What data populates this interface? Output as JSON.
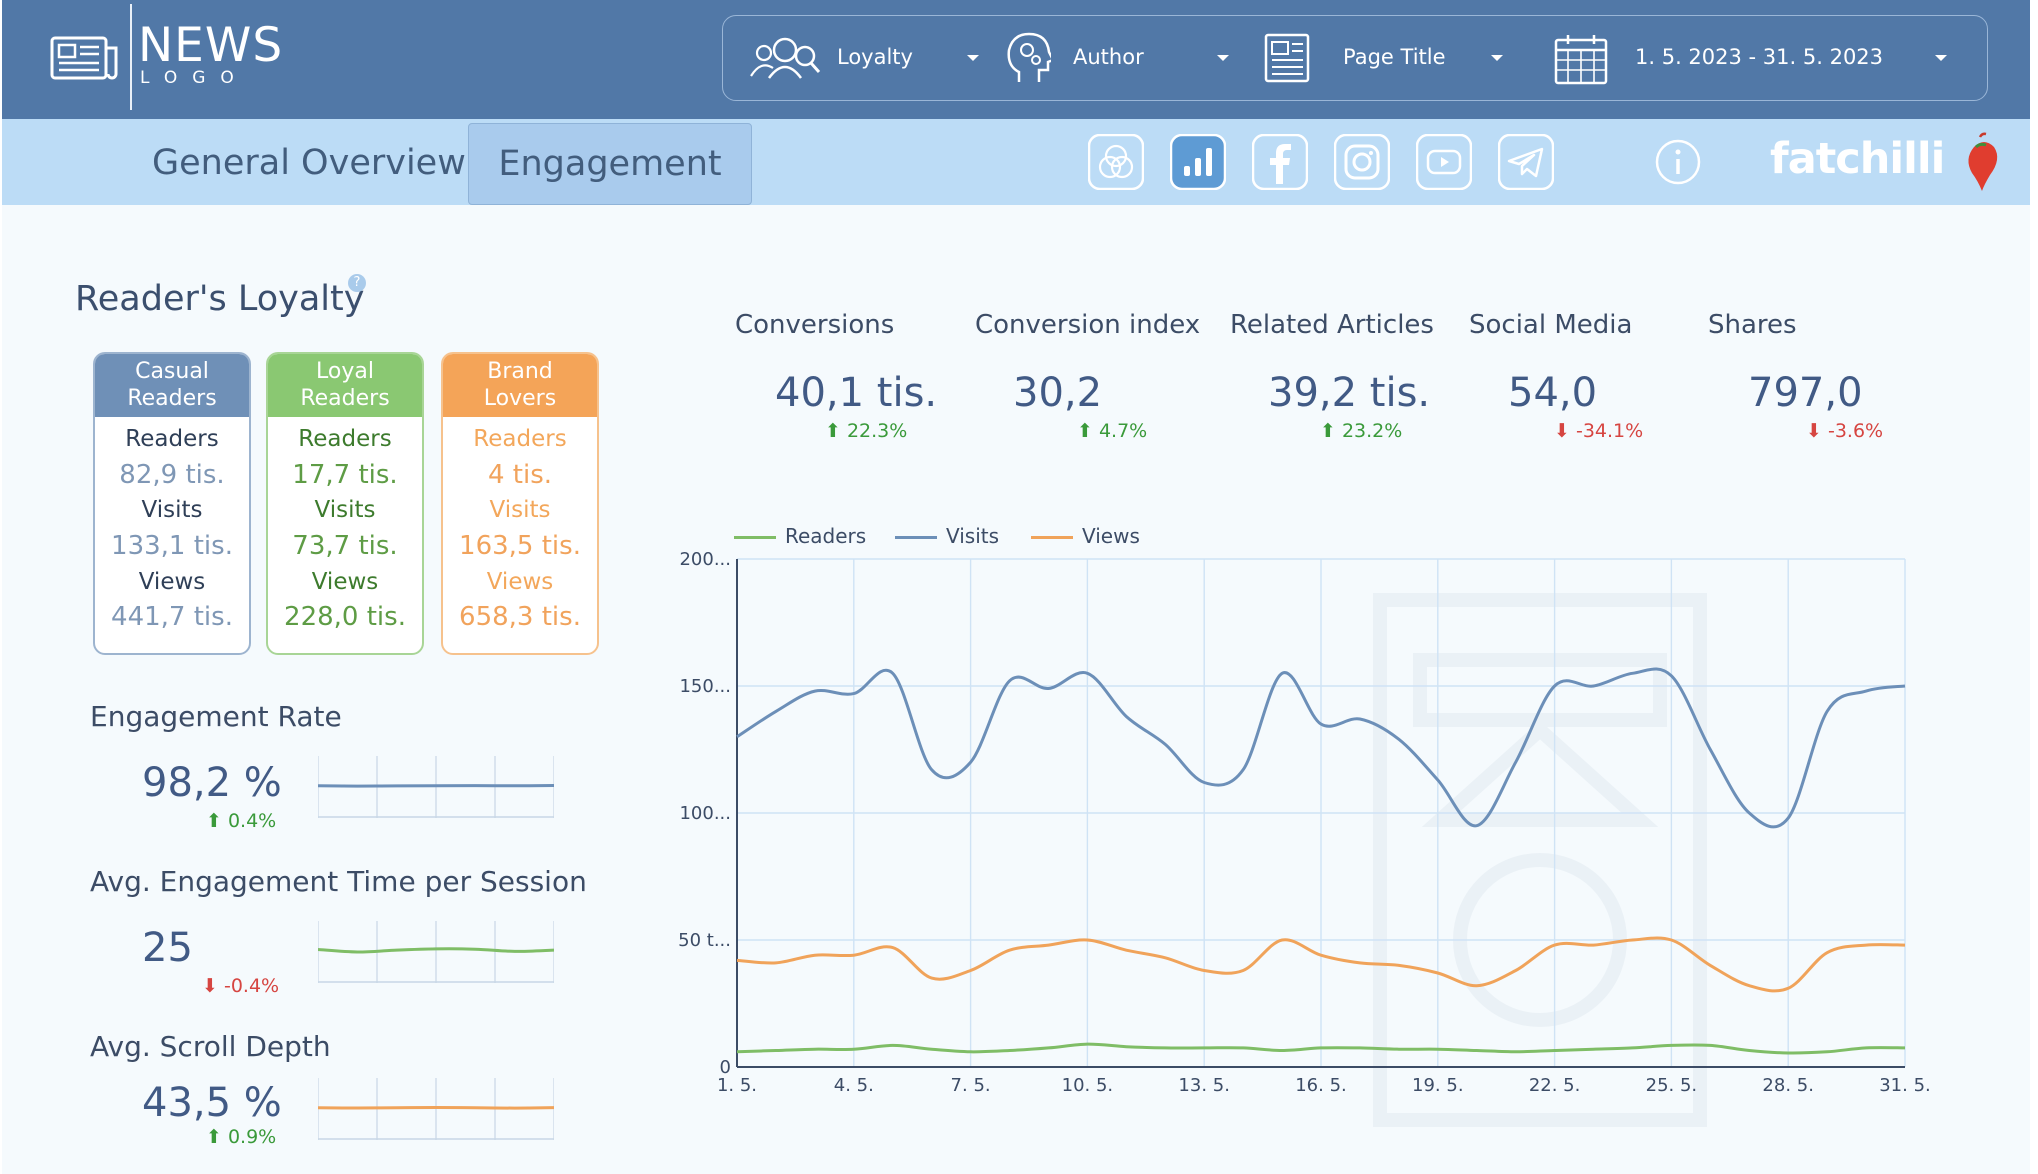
{
  "header": {
    "logo": {
      "title": "NEWS",
      "subtitle": "LOGO"
    },
    "filters": [
      {
        "label": "Loyalty",
        "icon": "users-search-icon"
      },
      {
        "label": "Author",
        "icon": "head-gears-icon"
      },
      {
        "label": "Page Title",
        "icon": "newspaper-icon"
      },
      {
        "label": "1. 5. 2023 - 31. 5. 2023",
        "icon": "calendar-icon"
      }
    ]
  },
  "nav": {
    "tabs": [
      {
        "label": "General Overview",
        "active": false
      },
      {
        "label": "Engagement",
        "active": true
      }
    ],
    "icons": [
      "venn-icon",
      "bar-chart-icon",
      "facebook-icon",
      "instagram-icon",
      "youtube-icon",
      "telegram-icon"
    ],
    "info_icon": "info-icon",
    "brand": "fatchilli"
  },
  "loyalty": {
    "title": "Reader's Loyalty",
    "cards": [
      {
        "head": [
          "Casual",
          "Readers"
        ],
        "readers_label": "Readers",
        "readers": "82,9 tis.",
        "visits_label": "Visits",
        "visits": "133,1 tis.",
        "views_label": "Views",
        "views": "441,7 tis."
      },
      {
        "head": [
          "Loyal",
          "Readers"
        ],
        "readers_label": "Readers",
        "readers": "17,7 tis.",
        "visits_label": "Visits",
        "visits": "73,7 tis.",
        "views_label": "Views",
        "views": "228,0 tis."
      },
      {
        "head": [
          "Brand",
          "Lovers"
        ],
        "readers_label": "Readers",
        "readers": "4 tis.",
        "visits_label": "Visits",
        "visits": "163,5 tis.",
        "views_label": "Views",
        "views": "658,3 tis."
      }
    ]
  },
  "metrics": [
    {
      "title": "Engagement Rate",
      "value": "98,2 %",
      "delta": "0.4%",
      "direction": "up",
      "color": "#6c8fb8",
      "spark": [
        52,
        51.5,
        51.8,
        52,
        52.2,
        52,
        52.4
      ]
    },
    {
      "title": "Avg. Engagement Time per Session",
      "value": "25",
      "delta": "-0.4%",
      "direction": "down",
      "color": "#7fbd66",
      "spark": [
        54,
        50,
        53,
        55,
        54.5,
        51,
        53
      ]
    },
    {
      "title": "Avg. Scroll Depth",
      "value": "43,5 %",
      "delta": "0.9%",
      "direction": "up",
      "color": "#f0a35a",
      "spark": [
        52,
        51.6,
        52,
        52.4,
        52,
        51.5,
        52.2
      ]
    }
  ],
  "kpis": [
    {
      "label": "Conversions",
      "value": "40,1 tis.",
      "delta": "22.3%",
      "direction": "up"
    },
    {
      "label": "Conversion index",
      "value": "30,2",
      "delta": "4.7%",
      "direction": "up"
    },
    {
      "label": "Related Articles",
      "value": "39,2 tis.",
      "delta": "23.2%",
      "direction": "up"
    },
    {
      "label": "Social Media",
      "value": "54,0",
      "delta": "-34.1%",
      "direction": "down"
    },
    {
      "label": "Shares",
      "value": "797,0",
      "delta": "-3.6%",
      "direction": "down"
    }
  ],
  "colors": {
    "readers": "#7fbd66",
    "visits": "#6c8fb8",
    "views": "#f0a35a",
    "up": "#3a9a3a",
    "down": "#d64541"
  },
  "chart_data": {
    "type": "line",
    "x": [
      "1. 5.",
      "2. 5.",
      "3. 5.",
      "4. 5.",
      "5. 5.",
      "6. 5.",
      "7. 5.",
      "8. 5.",
      "9. 5.",
      "10. 5.",
      "11. 5.",
      "12. 5.",
      "13. 5.",
      "14. 5.",
      "15. 5.",
      "16. 5.",
      "17. 5.",
      "18. 5.",
      "19. 5.",
      "20. 5.",
      "21. 5.",
      "22. 5.",
      "23. 5.",
      "24. 5.",
      "25. 5.",
      "26. 5.",
      "27. 5.",
      "28. 5.",
      "29. 5.",
      "30. 5.",
      "31. 5."
    ],
    "xticks": [
      "1. 5.",
      "4. 5.",
      "7. 5.",
      "10. 5.",
      "13. 5.",
      "16. 5.",
      "19. 5.",
      "22. 5.",
      "25. 5.",
      "28. 5.",
      "31. 5."
    ],
    "yticks": [
      "0",
      "50 t...",
      "100...",
      "150...",
      "200..."
    ],
    "ylim": [
      0,
      200000
    ],
    "grid": true,
    "legend_position": "top-left",
    "series": [
      {
        "name": "Readers",
        "values": [
          6000,
          6500,
          7000,
          7000,
          8500,
          7000,
          6000,
          6500,
          7500,
          9000,
          8000,
          7500,
          7500,
          7500,
          6500,
          7500,
          7500,
          7000,
          7000,
          6500,
          6000,
          6500,
          7000,
          7500,
          8500,
          8500,
          6500,
          5500,
          6000,
          7500,
          7500
        ]
      },
      {
        "name": "Visits",
        "values": [
          130000,
          140000,
          148000,
          147000,
          155000,
          117000,
          120000,
          152000,
          149000,
          155000,
          138000,
          127000,
          112000,
          117000,
          155000,
          135000,
          137000,
          129000,
          113000,
          95000,
          120000,
          150000,
          150000,
          155000,
          154000,
          125000,
          100000,
          98000,
          140000,
          148000,
          150000
        ]
      },
      {
        "name": "Views",
        "values": [
          42000,
          41000,
          44000,
          44000,
          47000,
          35000,
          38000,
          46000,
          48000,
          50000,
          46000,
          43000,
          38000,
          38000,
          50000,
          44000,
          41000,
          40000,
          37000,
          32000,
          38000,
          48000,
          48000,
          50000,
          50000,
          40000,
          32000,
          31000,
          45000,
          48000,
          48000
        ]
      }
    ]
  }
}
